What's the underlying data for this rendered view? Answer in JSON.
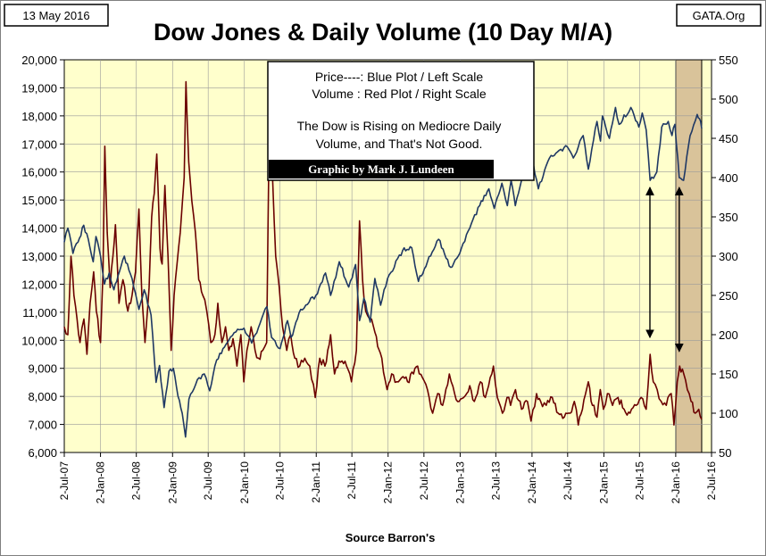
{
  "header": {
    "date": "13 May 2016",
    "source_site": "GATA.Org",
    "title": "Dow Jones & Daily Volume (10 Day M/A)"
  },
  "legend": {
    "line1": "Price----: Blue Plot / Left Scale",
    "line2": "Volume : Red Plot / Right Scale",
    "note_line1": "The Dow is Rising on Mediocre Daily",
    "note_line2": "Volume, and That's Not Good.",
    "credit": "Graphic by Mark J. Lundeen"
  },
  "footer": {
    "xlabel": "Source Barron's"
  },
  "colors": {
    "plot_bg": "#ffffcc",
    "price_line": "#1f3864",
    "volume_line": "#6b0000",
    "highlight": "#d9c39a",
    "grid": "#9a9a9a"
  },
  "chart_data": {
    "type": "line",
    "title": "Dow Jones & Daily Volume (10 Day M/A)",
    "xlabel": "Source Barron's",
    "x_tick_labels": [
      "2-Jul-07",
      "2-Jan-08",
      "2-Jul-08",
      "2-Jan-09",
      "2-Jul-09",
      "2-Jan-10",
      "2-Jul-10",
      "2-Jan-11",
      "2-Jul-11",
      "2-Jan-12",
      "2-Jul-12",
      "2-Jan-13",
      "2-Jul-13",
      "2-Jan-14",
      "2-Jul-14",
      "2-Jan-15",
      "2-Jul-15",
      "2-Jan-16",
      "2-Jul-16"
    ],
    "left_axis": {
      "min": 6000,
      "max": 20000,
      "step": 1000,
      "tick_labels": [
        "6,000",
        "7,000",
        "8,000",
        "9,000",
        "10,000",
        "11,000",
        "12,000",
        "13,000",
        "14,000",
        "15,000",
        "16,000",
        "17,000",
        "18,000",
        "19,000",
        "20,000"
      ]
    },
    "right_axis": {
      "min": 50,
      "max": 550,
      "step": 50,
      "tick_labels": [
        "50",
        "100",
        "150",
        "200",
        "250",
        "300",
        "350",
        "400",
        "450",
        "500",
        "550"
      ]
    },
    "grid": true,
    "highlight_range": [
      "2-Jan-16",
      "13-May-16"
    ],
    "annotations": [
      {
        "type": "double-arrow",
        "x": "2015-08-24",
        "from_price": 15450,
        "to_price": 10100
      },
      {
        "type": "double-arrow",
        "x": "2016-01-20",
        "from_price": 15450,
        "to_price": 9600
      }
    ],
    "series": [
      {
        "name": "Price",
        "axis": "left",
        "points": [
          [
            "2007-07-02",
            13500
          ],
          [
            "2007-07-20",
            14000
          ],
          [
            "2007-08-15",
            13100
          ],
          [
            "2007-09-10",
            13500
          ],
          [
            "2007-10-09",
            14100
          ],
          [
            "2007-11-01",
            13600
          ],
          [
            "2007-11-26",
            12800
          ],
          [
            "2007-12-10",
            13700
          ],
          [
            "2008-01-02",
            13000
          ],
          [
            "2008-01-22",
            12000
          ],
          [
            "2008-02-15",
            12400
          ],
          [
            "2008-03-10",
            11800
          ],
          [
            "2008-03-31",
            12300
          ],
          [
            "2008-05-02",
            13000
          ],
          [
            "2008-06-10",
            12200
          ],
          [
            "2008-07-15",
            11100
          ],
          [
            "2008-08-11",
            11800
          ],
          [
            "2008-09-15",
            10900
          ],
          [
            "2008-10-10",
            8500
          ],
          [
            "2008-10-28",
            9100
          ],
          [
            "2008-11-20",
            7600
          ],
          [
            "2008-12-15",
            8900
          ],
          [
            "2009-01-06",
            9000
          ],
          [
            "2009-01-30",
            8000
          ],
          [
            "2009-02-20",
            7400
          ],
          [
            "2009-03-09",
            6550
          ],
          [
            "2009-03-26",
            7900
          ],
          [
            "2009-05-08",
            8600
          ],
          [
            "2009-06-12",
            8800
          ],
          [
            "2009-07-10",
            8200
          ],
          [
            "2009-08-14",
            9300
          ],
          [
            "2009-09-15",
            9700
          ],
          [
            "2009-10-15",
            10000
          ],
          [
            "2009-11-20",
            10300
          ],
          [
            "2009-12-31",
            10430
          ],
          [
            "2010-02-08",
            9900
          ],
          [
            "2010-04-26",
            11200
          ],
          [
            "2010-05-20",
            10100
          ],
          [
            "2010-07-02",
            9700
          ],
          [
            "2010-08-09",
            10700
          ],
          [
            "2010-08-27",
            10100
          ],
          [
            "2010-10-15",
            11100
          ],
          [
            "2010-12-31",
            11600
          ],
          [
            "2011-02-18",
            12400
          ],
          [
            "2011-03-16",
            11600
          ],
          [
            "2011-04-29",
            12800
          ],
          [
            "2011-06-16",
            11900
          ],
          [
            "2011-07-21",
            12700
          ],
          [
            "2011-08-10",
            10700
          ],
          [
            "2011-09-01",
            11500
          ],
          [
            "2011-10-03",
            10650
          ],
          [
            "2011-10-27",
            12200
          ],
          [
            "2011-11-25",
            11250
          ],
          [
            "2011-12-30",
            12200
          ],
          [
            "2012-03-16",
            13200
          ],
          [
            "2012-05-01",
            13300
          ],
          [
            "2012-06-04",
            12100
          ],
          [
            "2012-07-20",
            12800
          ],
          [
            "2012-09-14",
            13600
          ],
          [
            "2012-11-15",
            12600
          ],
          [
            "2012-12-31",
            13100
          ],
          [
            "2013-02-20",
            14000
          ],
          [
            "2013-04-11",
            14800
          ],
          [
            "2013-05-28",
            15400
          ],
          [
            "2013-06-24",
            14700
          ],
          [
            "2013-08-02",
            15600
          ],
          [
            "2013-08-30",
            14800
          ],
          [
            "2013-09-18",
            15700
          ],
          [
            "2013-10-09",
            14800
          ],
          [
            "2013-11-27",
            16100
          ],
          [
            "2013-12-31",
            16580
          ],
          [
            "2014-02-03",
            15400
          ],
          [
            "2014-04-01",
            16500
          ],
          [
            "2014-06-30",
            16900
          ],
          [
            "2014-07-31",
            16500
          ],
          [
            "2014-09-19",
            17300
          ],
          [
            "2014-10-15",
            16100
          ],
          [
            "2014-11-28",
            17800
          ],
          [
            "2014-12-16",
            17100
          ],
          [
            "2014-12-26",
            18000
          ],
          [
            "2015-01-30",
            17200
          ],
          [
            "2015-03-02",
            18300
          ],
          [
            "2015-03-20",
            17700
          ],
          [
            "2015-05-19",
            18300
          ],
          [
            "2015-06-29",
            17600
          ],
          [
            "2015-07-16",
            18100
          ],
          [
            "2015-08-05",
            17500
          ],
          [
            "2015-08-25",
            15700
          ],
          [
            "2015-09-28",
            16000
          ],
          [
            "2015-10-23",
            17600
          ],
          [
            "2015-11-25",
            17800
          ],
          [
            "2015-12-14",
            17300
          ],
          [
            "2015-12-29",
            17700
          ],
          [
            "2016-01-20",
            15800
          ],
          [
            "2016-02-11",
            15700
          ],
          [
            "2016-03-15",
            17300
          ],
          [
            "2016-04-20",
            18050
          ],
          [
            "2016-05-02",
            17900
          ],
          [
            "2016-05-13",
            17550
          ]
        ]
      },
      {
        "name": "Volume",
        "axis": "right",
        "points": [
          [
            "2007-07-02",
            210
          ],
          [
            "2007-07-20",
            200
          ],
          [
            "2007-08-05",
            300
          ],
          [
            "2007-08-20",
            250
          ],
          [
            "2007-09-05",
            220
          ],
          [
            "2007-09-20",
            190
          ],
          [
            "2007-10-10",
            220
          ],
          [
            "2007-10-25",
            175
          ],
          [
            "2007-11-10",
            240
          ],
          [
            "2007-11-28",
            280
          ],
          [
            "2007-12-12",
            230
          ],
          [
            "2008-01-02",
            190
          ],
          [
            "2008-01-15",
            280
          ],
          [
            "2008-01-24",
            440
          ],
          [
            "2008-02-05",
            330
          ],
          [
            "2008-02-20",
            260
          ],
          [
            "2008-03-05",
            300
          ],
          [
            "2008-03-18",
            340
          ],
          [
            "2008-04-05",
            240
          ],
          [
            "2008-04-25",
            270
          ],
          [
            "2008-05-20",
            230
          ],
          [
            "2008-06-10",
            250
          ],
          [
            "2008-06-28",
            280
          ],
          [
            "2008-07-15",
            360
          ],
          [
            "2008-07-30",
            250
          ],
          [
            "2008-08-15",
            190
          ],
          [
            "2008-09-05",
            260
          ],
          [
            "2008-09-18",
            350
          ],
          [
            "2008-10-01",
            380
          ],
          [
            "2008-10-14",
            430
          ],
          [
            "2008-10-30",
            310
          ],
          [
            "2008-11-10",
            290
          ],
          [
            "2008-11-24",
            390
          ],
          [
            "2008-12-10",
            300
          ],
          [
            "2008-12-26",
            180
          ],
          [
            "2009-01-10",
            250
          ],
          [
            "2009-01-25",
            290
          ],
          [
            "2009-02-10",
            330
          ],
          [
            "2009-03-02",
            400
          ],
          [
            "2009-03-11",
            522
          ],
          [
            "2009-03-25",
            420
          ],
          [
            "2009-04-10",
            370
          ],
          [
            "2009-04-28",
            330
          ],
          [
            "2009-05-15",
            270
          ],
          [
            "2009-06-05",
            250
          ],
          [
            "2009-06-25",
            230
          ],
          [
            "2009-07-15",
            190
          ],
          [
            "2009-08-05",
            200
          ],
          [
            "2009-08-20",
            240
          ],
          [
            "2009-09-10",
            190
          ],
          [
            "2009-09-28",
            210
          ],
          [
            "2009-10-15",
            180
          ],
          [
            "2009-11-05",
            195
          ],
          [
            "2009-11-25",
            160
          ],
          [
            "2009-12-15",
            200
          ],
          [
            "2009-12-30",
            140
          ],
          [
            "2010-01-15",
            180
          ],
          [
            "2010-02-05",
            210
          ],
          [
            "2010-02-25",
            180
          ],
          [
            "2010-03-15",
            170
          ],
          [
            "2010-04-05",
            180
          ],
          [
            "2010-04-25",
            190
          ],
          [
            "2010-05-10",
            500
          ],
          [
            "2010-05-25",
            400
          ],
          [
            "2010-06-10",
            300
          ],
          [
            "2010-06-28",
            260
          ],
          [
            "2010-07-15",
            210
          ],
          [
            "2010-08-05",
            180
          ],
          [
            "2010-08-25",
            200
          ],
          [
            "2010-09-15",
            170
          ],
          [
            "2010-10-10",
            160
          ],
          [
            "2010-11-05",
            170
          ],
          [
            "2010-11-30",
            160
          ],
          [
            "2010-12-28",
            120
          ],
          [
            "2011-01-20",
            170
          ],
          [
            "2011-02-15",
            160
          ],
          [
            "2011-03-16",
            200
          ],
          [
            "2011-04-05",
            150
          ],
          [
            "2011-05-05",
            165
          ],
          [
            "2011-06-05",
            160
          ],
          [
            "2011-06-30",
            140
          ],
          [
            "2011-07-25",
            180
          ],
          [
            "2011-08-10",
            345
          ],
          [
            "2011-08-25",
            270
          ],
          [
            "2011-09-10",
            230
          ],
          [
            "2011-09-30",
            220
          ],
          [
            "2011-10-20",
            210
          ],
          [
            "2011-11-10",
            185
          ],
          [
            "2011-12-01",
            170
          ],
          [
            "2011-12-28",
            130
          ],
          [
            "2012-01-20",
            150
          ],
          [
            "2012-02-15",
            140
          ],
          [
            "2012-03-10",
            145
          ],
          [
            "2012-04-10",
            140
          ],
          [
            "2012-05-10",
            150
          ],
          [
            "2012-05-31",
            160
          ],
          [
            "2012-06-25",
            145
          ],
          [
            "2012-07-20",
            130
          ],
          [
            "2012-08-15",
            100
          ],
          [
            "2012-09-10",
            125
          ],
          [
            "2012-10-05",
            110
          ],
          [
            "2012-11-08",
            150
          ],
          [
            "2012-12-05",
            125
          ],
          [
            "2012-12-28",
            115
          ],
          [
            "2013-01-20",
            120
          ],
          [
            "2013-02-20",
            135
          ],
          [
            "2013-03-15",
            115
          ],
          [
            "2013-04-15",
            140
          ],
          [
            "2013-05-10",
            120
          ],
          [
            "2013-06-20",
            160
          ],
          [
            "2013-07-10",
            120
          ],
          [
            "2013-08-05",
            100
          ],
          [
            "2013-08-28",
            120
          ],
          [
            "2013-09-15",
            110
          ],
          [
            "2013-10-10",
            130
          ],
          [
            "2013-11-10",
            105
          ],
          [
            "2013-12-10",
            115
          ],
          [
            "2013-12-28",
            90
          ],
          [
            "2014-01-25",
            125
          ],
          [
            "2014-02-15",
            115
          ],
          [
            "2014-03-15",
            110
          ],
          [
            "2014-04-15",
            120
          ],
          [
            "2014-05-15",
            100
          ],
          [
            "2014-06-15",
            95
          ],
          [
            "2014-07-15",
            100
          ],
          [
            "2014-08-05",
            115
          ],
          [
            "2014-08-25",
            85
          ],
          [
            "2014-09-15",
            105
          ],
          [
            "2014-10-15",
            140
          ],
          [
            "2014-11-05",
            110
          ],
          [
            "2014-11-28",
            95
          ],
          [
            "2014-12-15",
            130
          ],
          [
            "2014-12-31",
            105
          ],
          [
            "2015-01-20",
            125
          ],
          [
            "2015-02-15",
            110
          ],
          [
            "2015-03-15",
            120
          ],
          [
            "2015-04-15",
            105
          ],
          [
            "2015-05-15",
            100
          ],
          [
            "2015-06-15",
            110
          ],
          [
            "2015-07-10",
            120
          ],
          [
            "2015-08-05",
            105
          ],
          [
            "2015-08-25",
            175
          ],
          [
            "2015-09-10",
            140
          ],
          [
            "2015-09-30",
            130
          ],
          [
            "2015-10-20",
            115
          ],
          [
            "2015-11-15",
            110
          ],
          [
            "2015-12-10",
            125
          ],
          [
            "2015-12-24",
            85
          ],
          [
            "2016-01-10",
            140
          ],
          [
            "2016-01-22",
            160
          ],
          [
            "2016-02-12",
            150
          ],
          [
            "2016-03-01",
            130
          ],
          [
            "2016-03-20",
            115
          ],
          [
            "2016-04-10",
            100
          ],
          [
            "2016-04-28",
            105
          ],
          [
            "2016-05-13",
            92
          ]
        ]
      }
    ]
  }
}
